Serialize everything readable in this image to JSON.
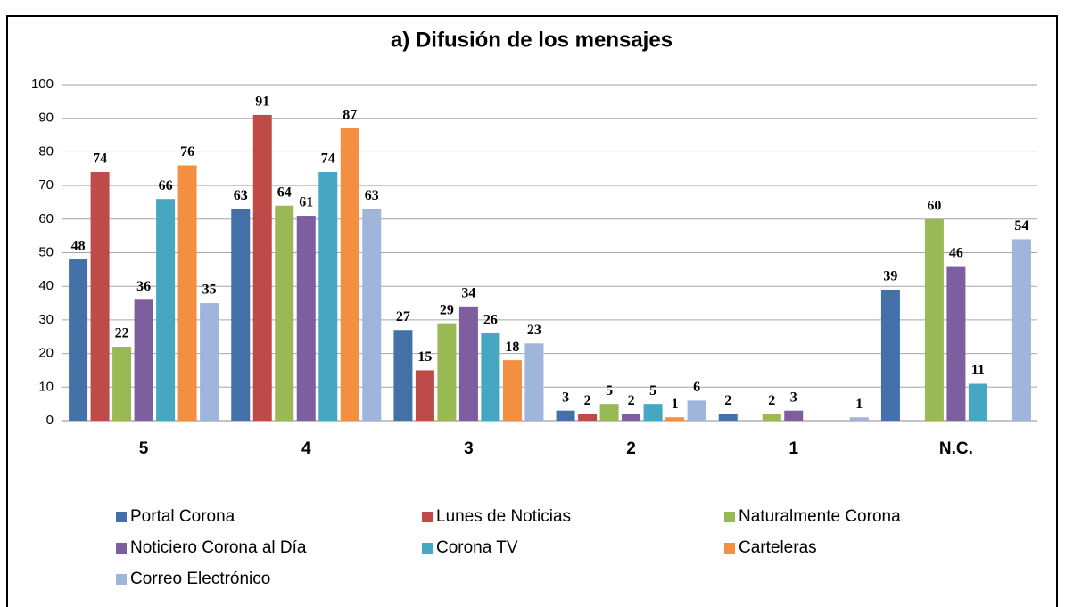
{
  "chart_data": {
    "type": "bar",
    "title": "a) Difusión de los mensajes",
    "categories": [
      "5",
      "4",
      "3",
      "2",
      "1",
      "N.C."
    ],
    "series": [
      {
        "name": "Portal Corona",
        "color": "#4470a8",
        "values": [
          48,
          63,
          27,
          3,
          2,
          39
        ]
      },
      {
        "name": "Lunes de Noticias",
        "color": "#bf4b48",
        "values": [
          74,
          91,
          15,
          2,
          null,
          null
        ]
      },
      {
        "name": "Naturalmente Corona",
        "color": "#98b954",
        "values": [
          22,
          64,
          29,
          5,
          2,
          60
        ]
      },
      {
        "name": "Noticiero Corona al Día",
        "color": "#7d5fa0",
        "values": [
          36,
          61,
          34,
          2,
          3,
          46
        ]
      },
      {
        "name": "Corona TV",
        "color": "#46a7c3",
        "values": [
          66,
          74,
          26,
          5,
          null,
          11
        ]
      },
      {
        "name": "Carteleras",
        "color": "#f28f40",
        "values": [
          76,
          87,
          18,
          1,
          null,
          null
        ]
      },
      {
        "name": "Correo Electrónico",
        "color": "#9fb5dc",
        "values": [
          35,
          63,
          23,
          6,
          1,
          54
        ]
      }
    ],
    "ylim": [
      0,
      100
    ],
    "yticks": [
      0,
      10,
      20,
      30,
      40,
      50,
      60,
      70,
      80,
      90,
      100
    ],
    "grid": true
  }
}
